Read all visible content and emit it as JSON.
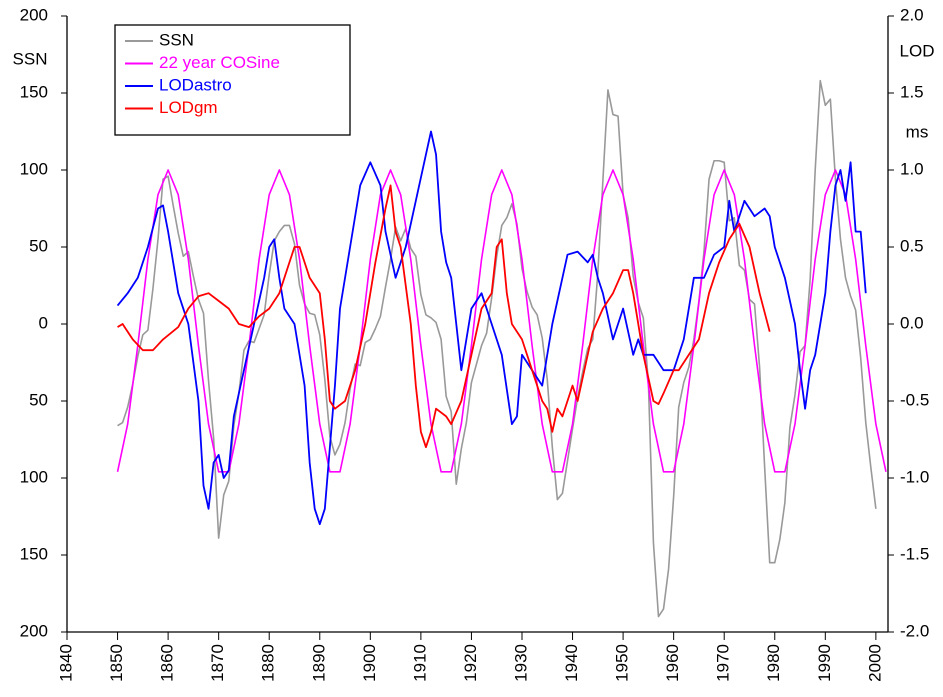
{
  "chart_data": {
    "type": "line",
    "y_label": "SSN",
    "y2_label": "LOD",
    "y2_unit": "ms",
    "xlim": [
      1840,
      2002.4
    ],
    "xticks": [
      1840,
      1850,
      1860,
      1870,
      1880,
      1890,
      1900,
      1910,
      1920,
      1930,
      1940,
      1950,
      1960,
      1970,
      1980,
      1990,
      2000
    ],
    "ylim": [
      -200,
      200
    ],
    "yticks": [
      200,
      150,
      100,
      50,
      0,
      {
        "value": -50,
        "label": "50"
      },
      {
        "value": -100,
        "label": "100"
      },
      {
        "value": -150,
        "label": "150"
      },
      {
        "value": -200,
        "label": "200"
      }
    ],
    "y2lim": [
      -2,
      2
    ],
    "y2ticks": [
      {
        "value": 2,
        "label": "2.0"
      },
      1.5,
      {
        "value": 1,
        "label": "1.0"
      },
      0.5,
      {
        "value": 0,
        "label": "0.0"
      },
      -0.5,
      {
        "value": -1,
        "label": "-1.0"
      },
      -1.5,
      {
        "value": -2,
        "label": "-2.0"
      }
    ],
    "grid": false,
    "legend": "top-left",
    "series": [
      {
        "name": "SSN",
        "color": "#999999",
        "x": [
          1850,
          1851,
          1852,
          1853,
          1854,
          1855,
          1856,
          1857,
          1858,
          1859,
          1860,
          1861,
          1862,
          1863,
          1864,
          1865,
          1866,
          1867,
          1868,
          1869,
          1870,
          1871,
          1872,
          1873,
          1874,
          1875,
          1876,
          1877,
          1878,
          1879,
          1880,
          1881,
          1882,
          1883,
          1884,
          1885,
          1886,
          1887,
          1888,
          1889,
          1890,
          1891,
          1892,
          1893,
          1894,
          1895,
          1896,
          1897,
          1898,
          1899,
          1900,
          1901,
          1902,
          1903,
          1904,
          1905,
          1906,
          1907,
          1908,
          1909,
          1910,
          1911,
          1912,
          1913,
          1914,
          1915,
          1916,
          1917,
          1918,
          1919,
          1920,
          1921,
          1922,
          1923,
          1924,
          1925,
          1926,
          1927,
          1928,
          1929,
          1930,
          1931,
          1932,
          1933,
          1934,
          1935,
          1936,
          1937,
          1938,
          1939,
          1940,
          1941,
          1942,
          1943,
          1944,
          1945,
          1946,
          1947,
          1948,
          1949,
          1950,
          1951,
          1952,
          1953,
          1954,
          1955,
          1956,
          1957,
          1958,
          1959,
          1960,
          1961,
          1962,
          1963,
          1964,
          1965,
          1966,
          1967,
          1968,
          1969,
          1970,
          1971,
          1972,
          1973,
          1974,
          1975,
          1976,
          1977,
          1978,
          1979,
          1980,
          1981,
          1982,
          1983,
          1984,
          1985,
          1986,
          1987,
          1988,
          1989,
          1990,
          1991,
          1992,
          1993,
          1994,
          1995,
          1996,
          1997,
          1998,
          1999,
          2000
        ],
        "values": [
          -66,
          -64,
          -54,
          -39,
          -21,
          -7,
          -4,
          23,
          55,
          94,
          96,
          77,
          59,
          44,
          47,
          31,
          16,
          7,
          -37,
          -74,
          -139,
          -111,
          -102,
          -66,
          -45,
          -17,
          -11,
          -12,
          -3,
          6,
          32,
          54,
          60,
          64,
          64,
          52,
          25,
          13,
          7,
          6,
          -7,
          -36,
          -73,
          -85,
          -78,
          -64,
          -42,
          -26,
          -27,
          -12,
          -10,
          -3,
          5,
          24,
          42,
          63,
          54,
          62,
          49,
          44,
          19,
          6,
          4,
          1,
          -10,
          -47,
          -57,
          -104,
          -81,
          -64,
          -38,
          -26,
          -14,
          -6,
          17,
          44,
          64,
          69,
          78,
          65,
          36,
          21,
          11,
          6,
          -9,
          -36,
          -80,
          -114,
          -110,
          -89,
          -68,
          -48,
          -31,
          -16,
          -10,
          33,
          93,
          152,
          136,
          135,
          84,
          69,
          31,
          14,
          4,
          -38,
          -142,
          -190,
          -185,
          -159,
          -112,
          -54,
          -38,
          -28,
          -10,
          15,
          47,
          94,
          106,
          106,
          105,
          67,
          69,
          38,
          35,
          16,
          13,
          -28,
          -93,
          -155,
          -155,
          -140,
          -116,
          -67,
          -46,
          -18,
          -14,
          29,
          100,
          158,
          142,
          146,
          94,
          55,
          30,
          18,
          9,
          -22,
          -64,
          -93,
          -120
        ]
      },
      {
        "name": "22 year COSine",
        "color": "#ff00ff",
        "x": [
          1850,
          1852,
          1854,
          1856,
          1858,
          1860,
          1862,
          1864,
          1866,
          1868,
          1870,
          1872,
          1874,
          1876,
          1878,
          1880,
          1882,
          1884,
          1886,
          1888,
          1890,
          1892,
          1894,
          1896,
          1898,
          1900,
          1902,
          1904,
          1906,
          1908,
          1910,
          1912,
          1914,
          1916,
          1918,
          1920,
          1922,
          1924,
          1926,
          1928,
          1930,
          1932,
          1934,
          1936,
          1938,
          1940,
          1942,
          1944,
          1946,
          1948,
          1950,
          1952,
          1954,
          1956,
          1958,
          1960,
          1962,
          1964,
          1966,
          1968,
          1970,
          1972,
          1974,
          1976,
          1978,
          1980,
          1982,
          1984,
          1986,
          1988,
          1990,
          1992,
          1994,
          1996,
          1998,
          2000,
          2002
        ],
        "values": [
          -96,
          -65,
          -14,
          42,
          84,
          100,
          84,
          42,
          -14,
          -65,
          -96,
          -96,
          -65,
          -14,
          42,
          84,
          100,
          84,
          42,
          -14,
          -65,
          -96,
          -96,
          -65,
          -14,
          42,
          84,
          100,
          84,
          42,
          -14,
          -65,
          -96,
          -96,
          -65,
          -14,
          42,
          84,
          100,
          84,
          42,
          -14,
          -65,
          -96,
          -96,
          -65,
          -14,
          42,
          84,
          100,
          84,
          42,
          -14,
          -65,
          -96,
          -96,
          -65,
          -14,
          42,
          84,
          100,
          84,
          42,
          -14,
          -65,
          -96,
          -96,
          -65,
          -14,
          42,
          84,
          100,
          84,
          42,
          -14,
          -65,
          -96
        ]
      },
      {
        "name": "LODastro",
        "color": "#0000ff",
        "axis": "y2",
        "x": [
          1850,
          1852,
          1854,
          1856,
          1858,
          1859,
          1860,
          1862,
          1864,
          1866,
          1867,
          1868,
          1869,
          1870,
          1871,
          1872,
          1873,
          1875,
          1877,
          1879,
          1880,
          1881,
          1882,
          1883,
          1885,
          1887,
          1888,
          1889,
          1890,
          1891,
          1892,
          1893,
          1894,
          1896,
          1898,
          1900,
          1902,
          1903,
          1905,
          1907,
          1909,
          1911,
          1912,
          1913,
          1914,
          1915,
          1916,
          1917,
          1918,
          1920,
          1922,
          1924,
          1926,
          1928,
          1929,
          1930,
          1932,
          1934,
          1936,
          1938,
          1939,
          1941,
          1943,
          1944,
          1945,
          1946,
          1948,
          1950,
          1951,
          1952,
          1953,
          1954,
          1956,
          1958,
          1960,
          1962,
          1964,
          1966,
          1968,
          1970,
          1971,
          1972,
          1974,
          1976,
          1978,
          1979,
          1980,
          1982,
          1984,
          1985,
          1986,
          1987,
          1988,
          1990,
          1991,
          1992,
          1993,
          1994,
          1995,
          1996,
          1997,
          1998
        ],
        "values": [
          0.12,
          0.2,
          0.3,
          0.5,
          0.75,
          0.77,
          0.6,
          0.2,
          0,
          -0.5,
          -1.05,
          -1.2,
          -0.9,
          -0.85,
          -1,
          -0.95,
          -0.6,
          -0.3,
          0,
          0.3,
          0.5,
          0.55,
          0.3,
          0.1,
          0,
          -0.4,
          -0.9,
          -1.2,
          -1.3,
          -1.2,
          -0.8,
          -0.4,
          0.1,
          0.5,
          0.9,
          1.05,
          0.9,
          0.6,
          0.3,
          0.5,
          0.8,
          1.1,
          1.25,
          1.1,
          0.6,
          0.4,
          0.3,
          0,
          -0.3,
          0.1,
          0.2,
          0,
          -0.2,
          -0.65,
          -0.6,
          -0.2,
          -0.3,
          -0.4,
          0,
          0.3,
          0.45,
          0.47,
          0.4,
          0.45,
          0.3,
          0.2,
          -0.1,
          0.1,
          -0.05,
          -0.2,
          -0.1,
          -0.2,
          -0.2,
          -0.3,
          -0.3,
          -0.1,
          0.3,
          0.3,
          0.45,
          0.5,
          0.8,
          0.6,
          0.8,
          0.7,
          0.75,
          0.7,
          0.5,
          0.3,
          0,
          -0.3,
          -0.55,
          -0.3,
          -0.2,
          0.2,
          0.6,
          0.9,
          1,
          0.8,
          1.05,
          0.6,
          0.6,
          0.2
        ]
      },
      {
        "name": "LODgm",
        "color": "#ff0000",
        "axis": "y2",
        "x": [
          1850,
          1851,
          1853,
          1855,
          1857,
          1859,
          1862,
          1864,
          1866,
          1868,
          1870,
          1872,
          1874,
          1876,
          1878,
          1880,
          1882,
          1884,
          1885,
          1886,
          1887,
          1888,
          1890,
          1891,
          1892,
          1893,
          1895,
          1897,
          1899,
          1901,
          1903,
          1904,
          1905,
          1906,
          1908,
          1909,
          1910,
          1911,
          1912,
          1913,
          1915,
          1916,
          1918,
          1920,
          1922,
          1924,
          1925,
          1926,
          1927,
          1928,
          1930,
          1932,
          1934,
          1935,
          1936,
          1937,
          1938,
          1940,
          1941,
          1942,
          1944,
          1946,
          1948,
          1950,
          1951,
          1952,
          1954,
          1956,
          1957,
          1958,
          1960,
          1961,
          1963,
          1965,
          1967,
          1969,
          1971,
          1973,
          1975,
          1977,
          1979
        ],
        "values": [
          -0.02,
          0,
          -0.1,
          -0.17,
          -0.17,
          -0.1,
          -0.02,
          0.1,
          0.18,
          0.2,
          0.15,
          0.1,
          0,
          -0.02,
          0.05,
          0.1,
          0.2,
          0.4,
          0.5,
          0.5,
          0.4,
          0.3,
          0.2,
          -0.1,
          -0.5,
          -0.55,
          -0.5,
          -0.3,
          0,
          0.4,
          0.75,
          0.9,
          0.6,
          0.5,
          0,
          -0.4,
          -0.7,
          -0.8,
          -0.7,
          -0.55,
          -0.6,
          -0.65,
          -0.5,
          -0.2,
          0.1,
          0.2,
          0.5,
          0.55,
          0.2,
          0,
          -0.1,
          -0.3,
          -0.5,
          -0.55,
          -0.7,
          -0.55,
          -0.6,
          -0.4,
          -0.5,
          -0.35,
          -0.05,
          0.1,
          0.2,
          0.35,
          0.35,
          0.2,
          -0.2,
          -0.5,
          -0.52,
          -0.45,
          -0.3,
          -0.3,
          -0.2,
          -0.1,
          0.2,
          0.4,
          0.55,
          0.65,
          0.5,
          0.2,
          -0.05
        ]
      }
    ]
  }
}
